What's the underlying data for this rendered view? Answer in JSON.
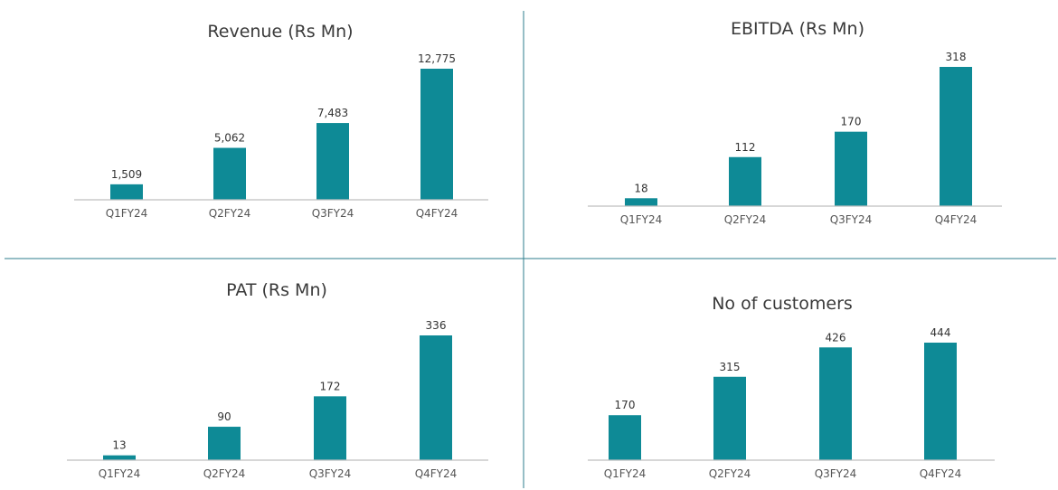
{
  "colors": {
    "bar": "#0e8a96",
    "divider": "#2e7d8c"
  },
  "chart_data": [
    {
      "type": "bar",
      "title": "Revenue (Rs Mn)",
      "categories": [
        "Q1FY24",
        "Q2FY24",
        "Q3FY24",
        "Q4FY24"
      ],
      "values": [
        1509,
        5062,
        7483,
        12775
      ],
      "value_labels": [
        "1,509",
        "5,062",
        "7,483",
        "12,775"
      ],
      "xlabel": "",
      "ylabel": "",
      "grid": false
    },
    {
      "type": "bar",
      "title": "EBITDA (Rs Mn)",
      "categories": [
        "Q1FY24",
        "Q2FY24",
        "Q3FY24",
        "Q4FY24"
      ],
      "values": [
        18,
        112,
        170,
        318
      ],
      "value_labels": [
        "18",
        "112",
        "170",
        "318"
      ],
      "xlabel": "",
      "ylabel": "",
      "grid": false
    },
    {
      "type": "bar",
      "title": "PAT (Rs Mn)",
      "categories": [
        "Q1FY24",
        "Q2FY24",
        "Q3FY24",
        "Q4FY24"
      ],
      "values": [
        13,
        90,
        172,
        336
      ],
      "value_labels": [
        "13",
        "90",
        "172",
        "336"
      ],
      "xlabel": "",
      "ylabel": "",
      "grid": false
    },
    {
      "type": "bar",
      "title": "No of customers",
      "categories": [
        "Q1FY24",
        "Q2FY24",
        "Q3FY24",
        "Q4FY24"
      ],
      "values": [
        170,
        315,
        426,
        444
      ],
      "value_labels": [
        "170",
        "315",
        "426",
        "444"
      ],
      "xlabel": "",
      "ylabel": "",
      "grid": false
    }
  ]
}
